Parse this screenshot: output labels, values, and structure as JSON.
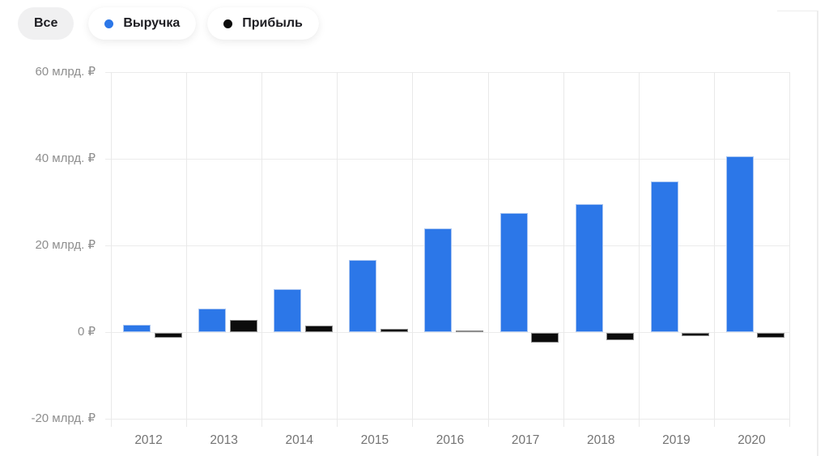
{
  "header": {
    "filter_all_label": "Все",
    "legend": [
      {
        "label": "Выручка",
        "color": "#2C77E8"
      },
      {
        "label": "Прибыль",
        "color": "#0C0C0C"
      }
    ]
  },
  "colors": {
    "revenue_fill": "#2C77E8",
    "revenue_border": "#A9C5F1",
    "profit_fill": "#0C0C0C",
    "profit_border": "#8D8D8D",
    "grid": "#EBEBEB",
    "y_tick_text": "#8E8E8E",
    "x_tick_text": "#737373",
    "pill_text": "#1D1D22",
    "pill_grey_bg": "#F0F0F1"
  },
  "chart_data": {
    "type": "bar",
    "title": "",
    "categories": [
      "2012",
      "2013",
      "2014",
      "2015",
      "2016",
      "2017",
      "2018",
      "2019",
      "2020"
    ],
    "series": [
      {
        "name": "Выручка",
        "color": "#2C77E8",
        "values": [
          1.7,
          5.4,
          9.8,
          16.6,
          23.9,
          27.4,
          29.5,
          34.8,
          40.5
        ]
      },
      {
        "name": "Прибыль",
        "color": "#0C0C0C",
        "values": [
          -1.2,
          2.7,
          1.4,
          0.8,
          0.3,
          -2.2,
          -1.7,
          -0.8,
          -1.2
        ]
      }
    ],
    "unit": "млрд. ₽",
    "y_ticks": [
      {
        "value": 60,
        "label": "60 млрд. ₽"
      },
      {
        "value": 40,
        "label": "40 млрд. ₽"
      },
      {
        "value": 20,
        "label": "20 млрд. ₽"
      },
      {
        "value": 0,
        "label": "0 ₽"
      },
      {
        "value": -20,
        "label": "-20 млрд. ₽"
      }
    ],
    "ylim": [
      -21.9,
      60
    ],
    "grid": true,
    "legend_position": "top"
  }
}
